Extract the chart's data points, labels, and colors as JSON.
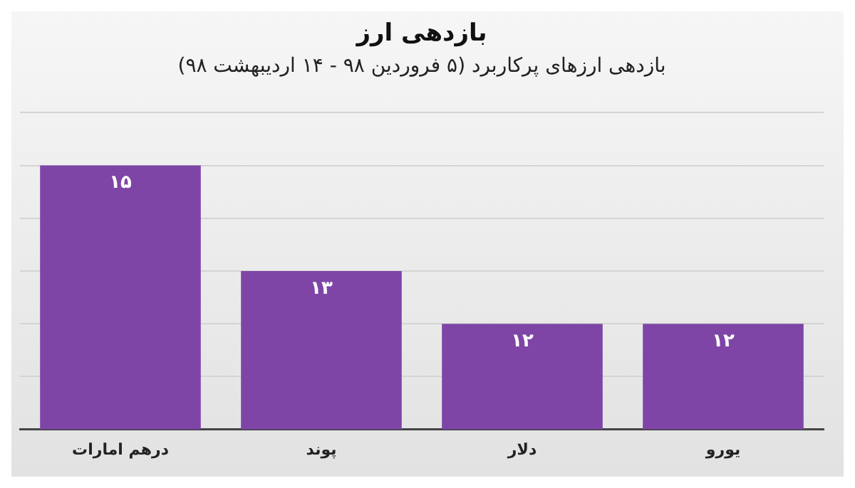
{
  "chart_data": {
    "type": "bar",
    "title": "بازدهی ارز",
    "subtitle": "بازدهی ارزهای پرکاربرد (۵ فروردین ۹۸ - ۱۴ اردیبهشت ۹۸)",
    "categories": [
      "درهم امارات",
      "پوند",
      "دلار",
      "یورو"
    ],
    "values": [
      15,
      13,
      12,
      12
    ],
    "value_labels": [
      "۱۵",
      "۱۳",
      "۱۲",
      "۱۲"
    ],
    "color": "#7e45a7",
    "ylim": [
      10,
      16
    ],
    "yticks": [
      {
        "value": 10,
        "label": null
      },
      {
        "value": 11,
        "label": null
      },
      {
        "value": 12,
        "label": null
      },
      {
        "value": 13,
        "label": null
      },
      {
        "value": 14,
        "label": null
      },
      {
        "value": 15,
        "label": null
      },
      {
        "value": 16,
        "label": null
      }
    ],
    "grid": "y",
    "tick_labels": "x"
  }
}
